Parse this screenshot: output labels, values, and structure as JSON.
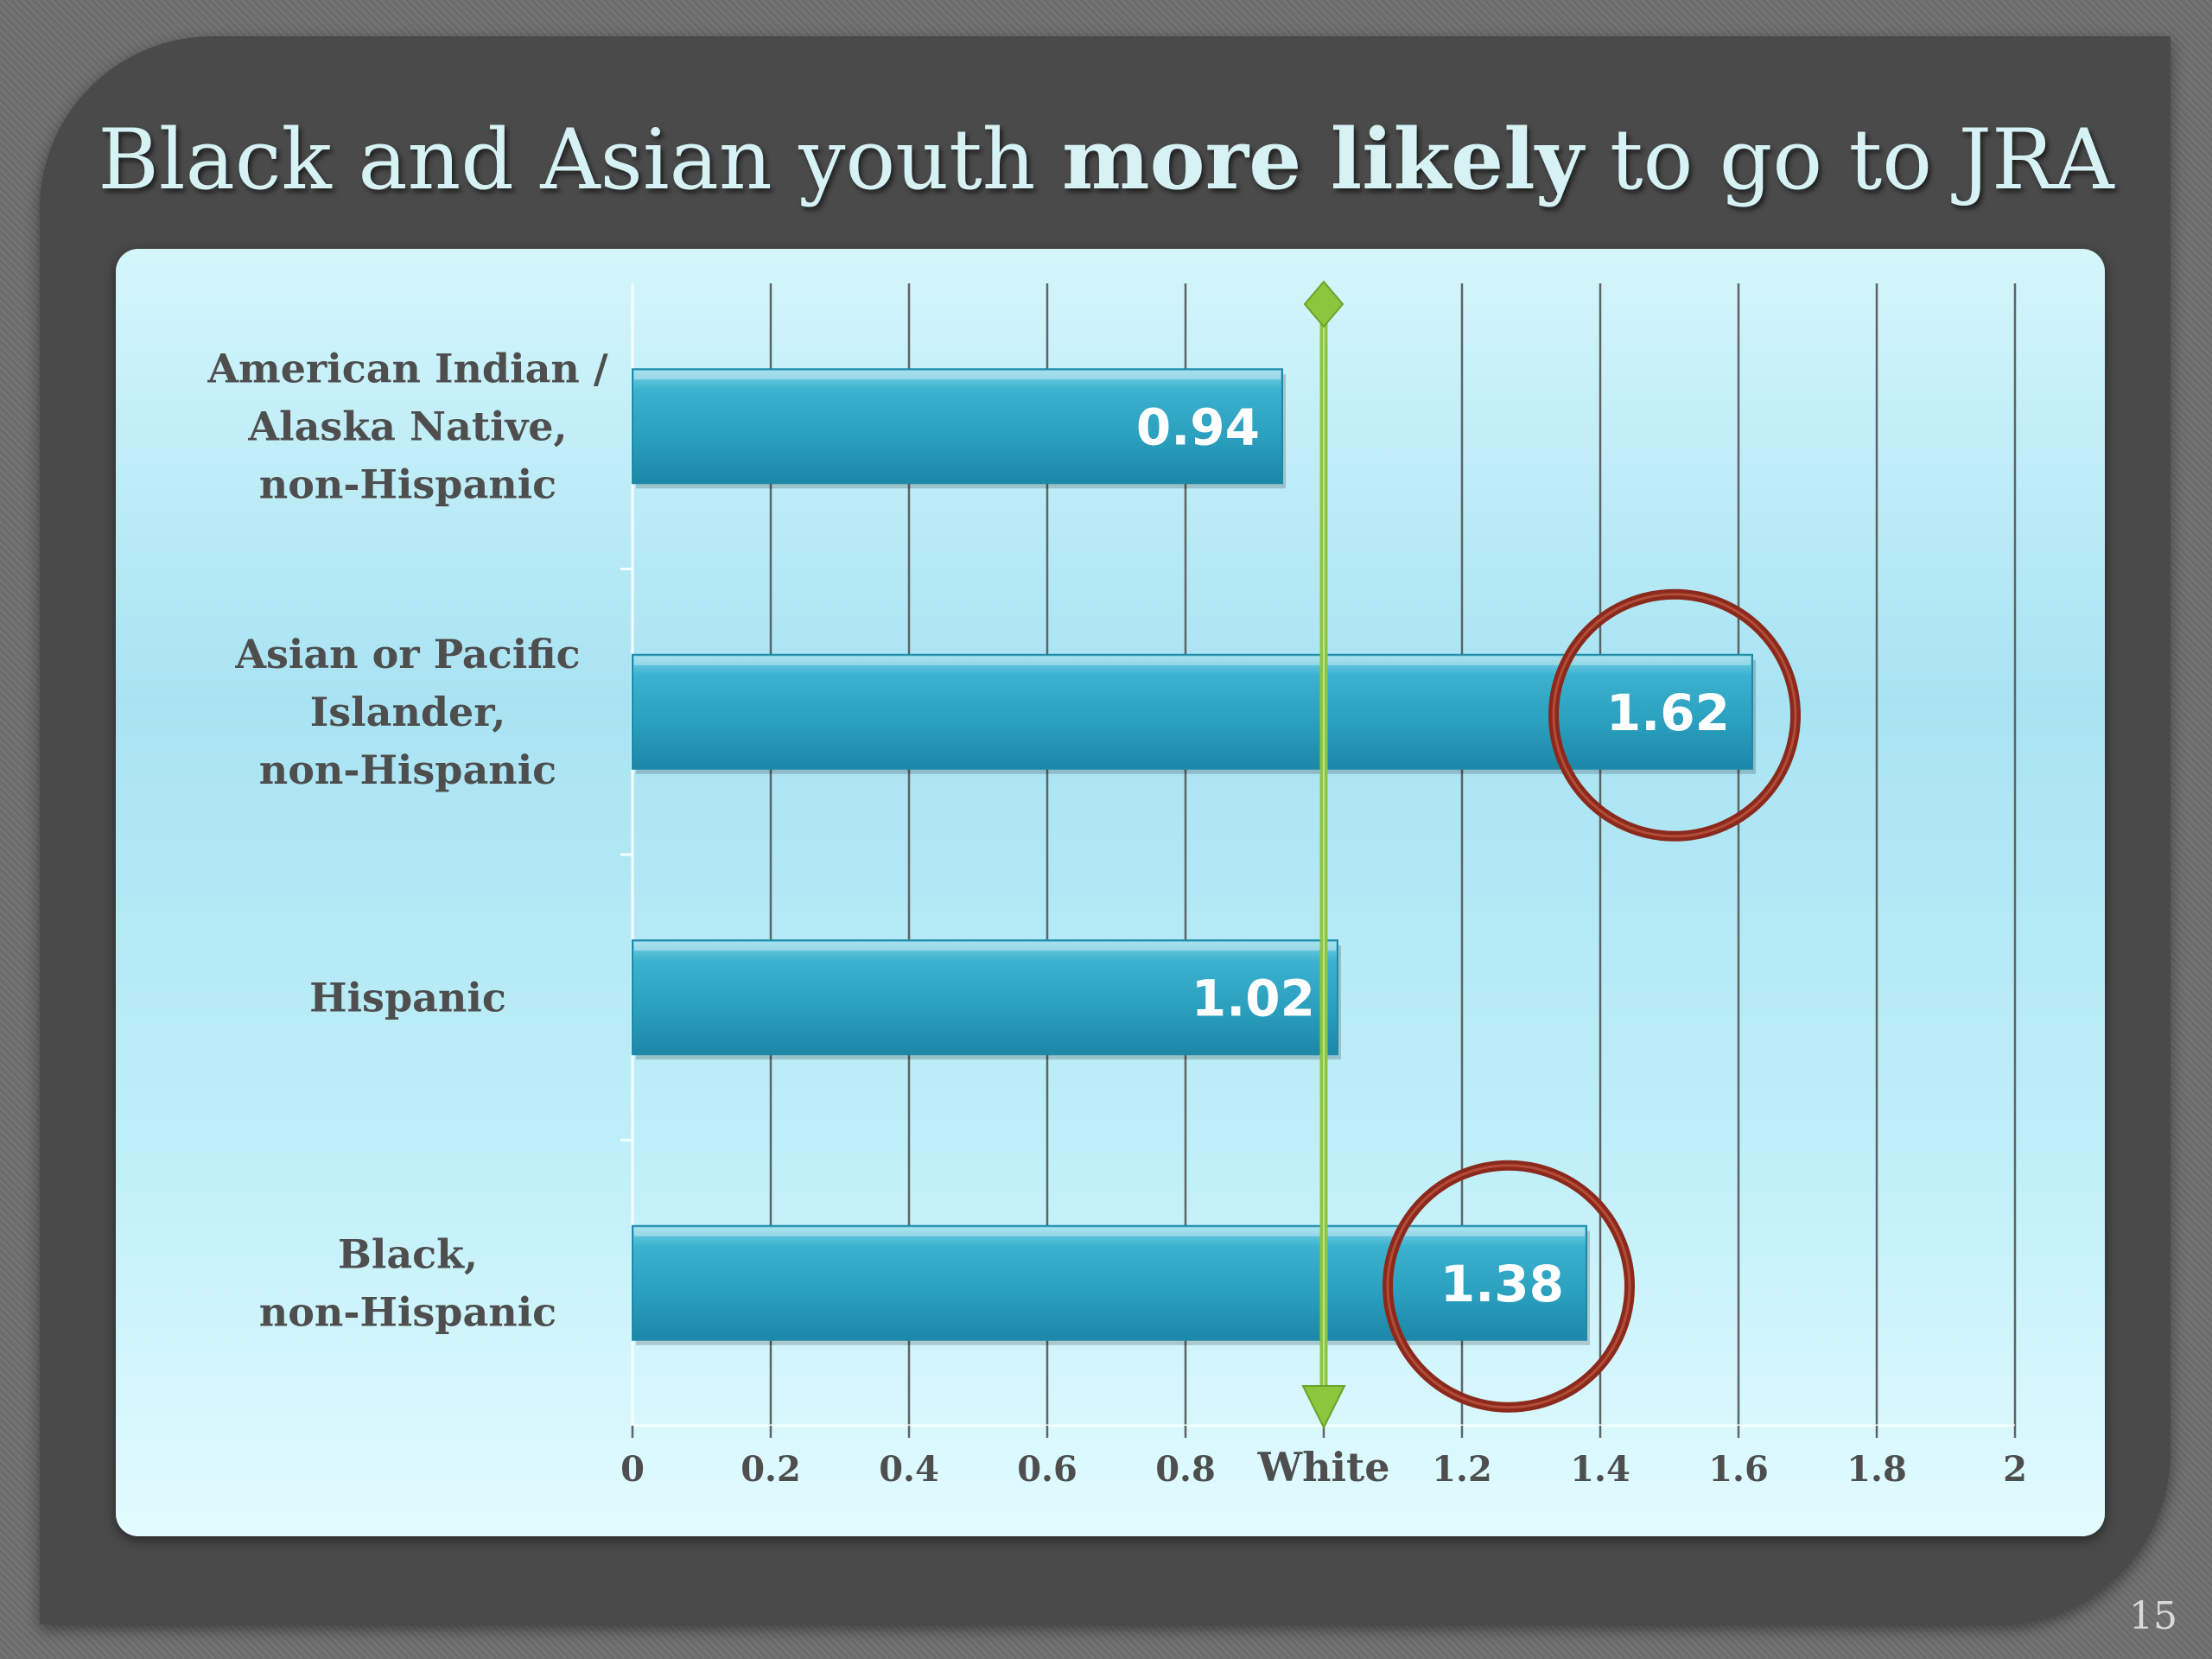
{
  "slide": {
    "title_pre": "Black and Asian youth ",
    "title_bold": "more likely",
    "title_post": " to go to JRA",
    "slide_number": "15"
  },
  "colors": {
    "bar": "#2ea7c5",
    "reference_line": "#8cc63f",
    "highlight_circle": "#8b2a1c"
  },
  "chart_data": {
    "type": "bar",
    "orientation": "horizontal",
    "categories": [
      [
        "American Indian /",
        "Alaska Native,",
        "non-Hispanic"
      ],
      [
        "Asian or Pacific",
        "Islander,",
        "non-Hispanic"
      ],
      [
        "Hispanic"
      ],
      [
        "Black,",
        "non-Hispanic"
      ]
    ],
    "values": [
      0.94,
      1.62,
      1.02,
      1.38
    ],
    "value_labels": [
      "0.94",
      "1.62",
      "1.02",
      "1.38"
    ],
    "xlim": [
      0,
      2
    ],
    "x_ticks": [
      {
        "value": 0,
        "label": "0"
      },
      {
        "value": 0.2,
        "label": "0.2"
      },
      {
        "value": 0.4,
        "label": "0.4"
      },
      {
        "value": 0.6,
        "label": "0.6"
      },
      {
        "value": 0.8,
        "label": "0.8"
      },
      {
        "value": 1.0,
        "label": "White"
      },
      {
        "value": 1.2,
        "label": "1.2"
      },
      {
        "value": 1.4,
        "label": "1.4"
      },
      {
        "value": 1.6,
        "label": "1.6"
      },
      {
        "value": 1.8,
        "label": "1.8"
      },
      {
        "value": 2.0,
        "label": "2"
      }
    ],
    "reference_line": {
      "value": 1.0
    },
    "highlighted": [
      "1.62",
      "1.38"
    ],
    "grid": true,
    "legend": "none"
  }
}
